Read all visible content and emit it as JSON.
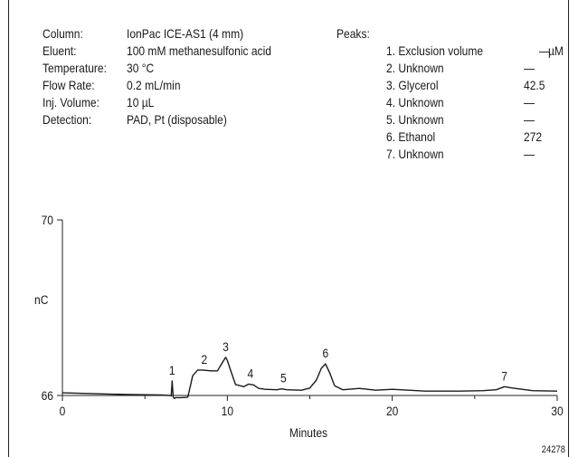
{
  "conditions": [
    {
      "label": "Column:",
      "value": "IonPac ICE-AS1 (4 mm)"
    },
    {
      "label": "Eluent:",
      "value": "100 mM methanesulfonic acid"
    },
    {
      "label": "Temperature:",
      "value": "30 °C"
    },
    {
      "label": "Flow Rate:",
      "value": "0.2 mL/min"
    },
    {
      "label": "Inj. Volume:",
      "value": "10 µL"
    },
    {
      "label": "Detection:",
      "value": "PAD, Pt (disposable)"
    }
  ],
  "peaks_heading": "Peaks:",
  "peaks_unit": "µM",
  "peaks": [
    {
      "name": "1. Exclusion volume",
      "value": "—"
    },
    {
      "name": "2. Unknown",
      "value": "—"
    },
    {
      "name": "3. Glycerol",
      "value": "42.5"
    },
    {
      "name": "4. Unknown",
      "value": "—"
    },
    {
      "name": "5. Unknown",
      "value": "—"
    },
    {
      "name": "6. Ethanol",
      "value": "272"
    },
    {
      "name": "7. Unknown",
      "value": "—"
    }
  ],
  "figure_id": "24278",
  "chart_data": {
    "type": "line",
    "xlabel": "Minutes",
    "ylabel": "nC",
    "xlim": [
      0,
      30
    ],
    "ylim": [
      66,
      70
    ],
    "x_ticks": [
      "0",
      "10",
      "20",
      "30"
    ],
    "y_ticks": [
      "66",
      "70"
    ],
    "grid": false,
    "series": [
      {
        "x": [
          0,
          2,
          4,
          6,
          6.5,
          6.6,
          6.65,
          6.72,
          6.8,
          6.85,
          6.9,
          7.2,
          7.6,
          7.75,
          7.9,
          8.2,
          8.5,
          9.0,
          9.4,
          9.7,
          9.9,
          10.0,
          10.2,
          10.5,
          11.0,
          11.3,
          11.6,
          11.9,
          12.3,
          13.0,
          13.3,
          13.6,
          14.5,
          15.0,
          15.4,
          15.7,
          15.95,
          16.2,
          16.5,
          17.0,
          18.0,
          19.0,
          20.0,
          22.0,
          24.0,
          25.5,
          26.3,
          26.8,
          27.3,
          28.5,
          30
        ],
        "y": [
          66.06,
          66.04,
          66.02,
          66.01,
          66.0,
          65.99,
          66.33,
          65.96,
          65.93,
          65.95,
          65.95,
          65.95,
          65.96,
          66.2,
          66.45,
          66.58,
          66.58,
          66.56,
          66.56,
          66.75,
          66.87,
          66.8,
          66.57,
          66.25,
          66.2,
          66.26,
          66.24,
          66.16,
          66.14,
          66.13,
          66.15,
          66.13,
          66.12,
          66.17,
          66.35,
          66.62,
          66.72,
          66.52,
          66.22,
          66.13,
          66.16,
          66.12,
          66.14,
          66.1,
          66.1,
          66.11,
          66.13,
          66.2,
          66.17,
          66.11,
          66.1
        ]
      }
    ],
    "annotations": [
      {
        "label": "1",
        "x": 6.65,
        "y": 66.33
      },
      {
        "label": "2",
        "x": 8.6,
        "y": 66.58
      },
      {
        "label": "3",
        "x": 9.9,
        "y": 66.87
      },
      {
        "label": "4",
        "x": 11.4,
        "y": 66.26
      },
      {
        "label": "5",
        "x": 13.4,
        "y": 66.15
      },
      {
        "label": "6",
        "x": 15.95,
        "y": 66.72
      },
      {
        "label": "7",
        "x": 26.8,
        "y": 66.2
      }
    ]
  }
}
